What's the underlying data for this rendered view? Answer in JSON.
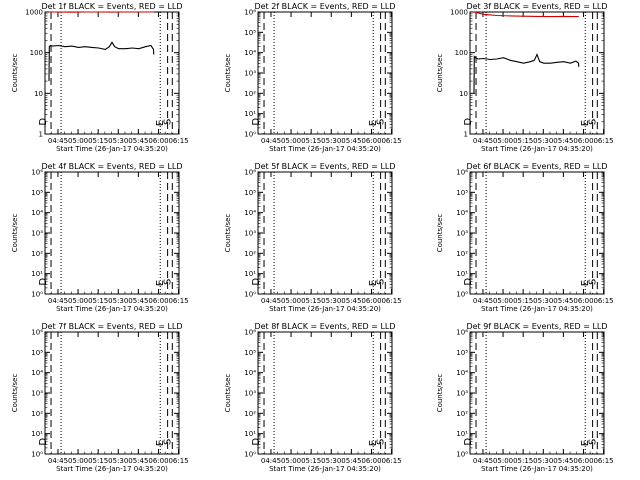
{
  "figure": {
    "xlabel": "Start Time (26-Jan-17 04:35:20)",
    "ylabel": "Counts/sec",
    "xticks": [
      "04:45",
      "05:00",
      "05:15",
      "05:30",
      "05:45",
      "06:00",
      "06:15"
    ],
    "tick_minutes": [
      9.67,
      24.67,
      39.67,
      54.67,
      69.67,
      84.67,
      99.67
    ],
    "x_range_min": [
      0,
      100
    ],
    "event_colors": {
      "events": "#000000",
      "lld": "#cc0000"
    }
  },
  "chart_data": [
    {
      "type": "line",
      "title": "Det 1f BLACK = Events, RED = LLD",
      "yscale": "log",
      "ylim": [
        1,
        1000
      ],
      "ytick_labels": [
        "1",
        "10",
        "100",
        "1000"
      ],
      "marker_labels": [
        "D",
        "E",
        "S"
      ],
      "series": [
        {
          "name": "Events",
          "color": "#000000",
          "x": [
            3.0,
            3.2,
            4.0,
            6,
            10,
            15,
            20,
            25,
            30,
            35,
            40,
            45,
            48,
            50,
            52,
            55,
            60,
            65,
            70,
            75,
            79,
            81,
            81.2
          ],
          "y": [
            20,
            140,
            150,
            145,
            150,
            140,
            145,
            135,
            140,
            135,
            130,
            120,
            140,
            180,
            140,
            125,
            125,
            130,
            125,
            140,
            150,
            120,
            90
          ]
        },
        {
          "name": "LLD",
          "color": "#cc0000",
          "x": [
            3,
            10,
            20,
            30,
            40,
            50,
            60,
            70,
            80,
            81.2
          ],
          "y": [
            1000,
            1000,
            990,
            1000,
            1000,
            995,
            1000,
            1000,
            1000,
            1000
          ]
        }
      ]
    },
    {
      "type": "line",
      "title": "Det 2f BLACK = Events, RED = LLD",
      "yscale": "log",
      "ylim": [
        1,
        1000000
      ],
      "ytick_labels": [
        "10⁰",
        "10¹",
        "10²",
        "10³",
        "10⁴",
        "10⁵",
        "10⁶"
      ],
      "marker_labels": [
        "D",
        "E",
        "S"
      ],
      "series": []
    },
    {
      "type": "line",
      "title": "Det 3f BLACK = Events, RED = LLD",
      "yscale": "log",
      "ylim": [
        1,
        1000
      ],
      "ytick_labels": [
        "1",
        "10",
        "100",
        "1000"
      ],
      "marker_labels": [
        "D",
        "E",
        "S"
      ],
      "series": [
        {
          "name": "Events",
          "color": "#000000",
          "x": [
            3.0,
            3.2,
            4.0,
            6,
            10,
            15,
            20,
            25,
            30,
            35,
            40,
            45,
            48,
            50,
            52,
            55,
            60,
            65,
            70,
            75,
            79,
            81,
            81.2
          ],
          "y": [
            10,
            80,
            75,
            70,
            72,
            68,
            70,
            75,
            65,
            60,
            55,
            60,
            65,
            90,
            60,
            55,
            55,
            58,
            60,
            55,
            62,
            55,
            45
          ]
        },
        {
          "name": "LLD",
          "color": "#cc0000",
          "x": [
            3,
            10,
            20,
            30,
            40,
            50,
            60,
            70,
            80,
            81.2
          ],
          "y": [
            1000,
            880,
            820,
            800,
            790,
            780,
            770,
            780,
            770,
            770
          ]
        }
      ]
    },
    {
      "type": "line",
      "title": "Det 4f BLACK = Events, RED = LLD",
      "yscale": "log",
      "ylim": [
        1,
        1000000
      ],
      "ytick_labels": [
        "10⁰",
        "10¹",
        "10²",
        "10³",
        "10⁴",
        "10⁵",
        "10⁶"
      ],
      "marker_labels": [
        "D",
        "E",
        "S"
      ],
      "series": []
    },
    {
      "type": "line",
      "title": "Det 5f BLACK = Events, RED = LLD",
      "yscale": "log",
      "ylim": [
        1,
        1000000
      ],
      "ytick_labels": [
        "10⁰",
        "10¹",
        "10²",
        "10³",
        "10⁴",
        "10⁵",
        "10⁶"
      ],
      "marker_labels": [
        "D",
        "E",
        "S"
      ],
      "series": []
    },
    {
      "type": "line",
      "title": "Det 6f BLACK = Events, RED = LLD",
      "yscale": "log",
      "ylim": [
        1,
        1000000
      ],
      "ytick_labels": [
        "10⁰",
        "10¹",
        "10²",
        "10³",
        "10⁴",
        "10⁵",
        "10⁶"
      ],
      "marker_labels": [
        "D",
        "E",
        "S"
      ],
      "series": []
    },
    {
      "type": "line",
      "title": "Det 7f BLACK = Events, RED = LLD",
      "yscale": "log",
      "ylim": [
        1,
        1000000
      ],
      "ytick_labels": [
        "10⁰",
        "10¹",
        "10²",
        "10³",
        "10⁴",
        "10⁵",
        "10⁶"
      ],
      "marker_labels": [
        "D",
        "E",
        "S"
      ],
      "series": []
    },
    {
      "type": "line",
      "title": "Det 8f BLACK = Events, RED = LLD",
      "yscale": "log",
      "ylim": [
        1,
        1000000
      ],
      "ytick_labels": [
        "10⁰",
        "10¹",
        "10²",
        "10³",
        "10⁴",
        "10⁵",
        "10⁶"
      ],
      "marker_labels": [
        "D",
        "E",
        "S"
      ],
      "series": []
    },
    {
      "type": "line",
      "title": "Det 9f BLACK = Events, RED = LLD",
      "yscale": "log",
      "ylim": [
        1,
        1000000
      ],
      "ytick_labels": [
        "10⁰",
        "10¹",
        "10²",
        "10³",
        "10⁴",
        "10⁵",
        "10⁶"
      ],
      "marker_labels": [
        "D",
        "E",
        "S"
      ],
      "series": []
    }
  ]
}
